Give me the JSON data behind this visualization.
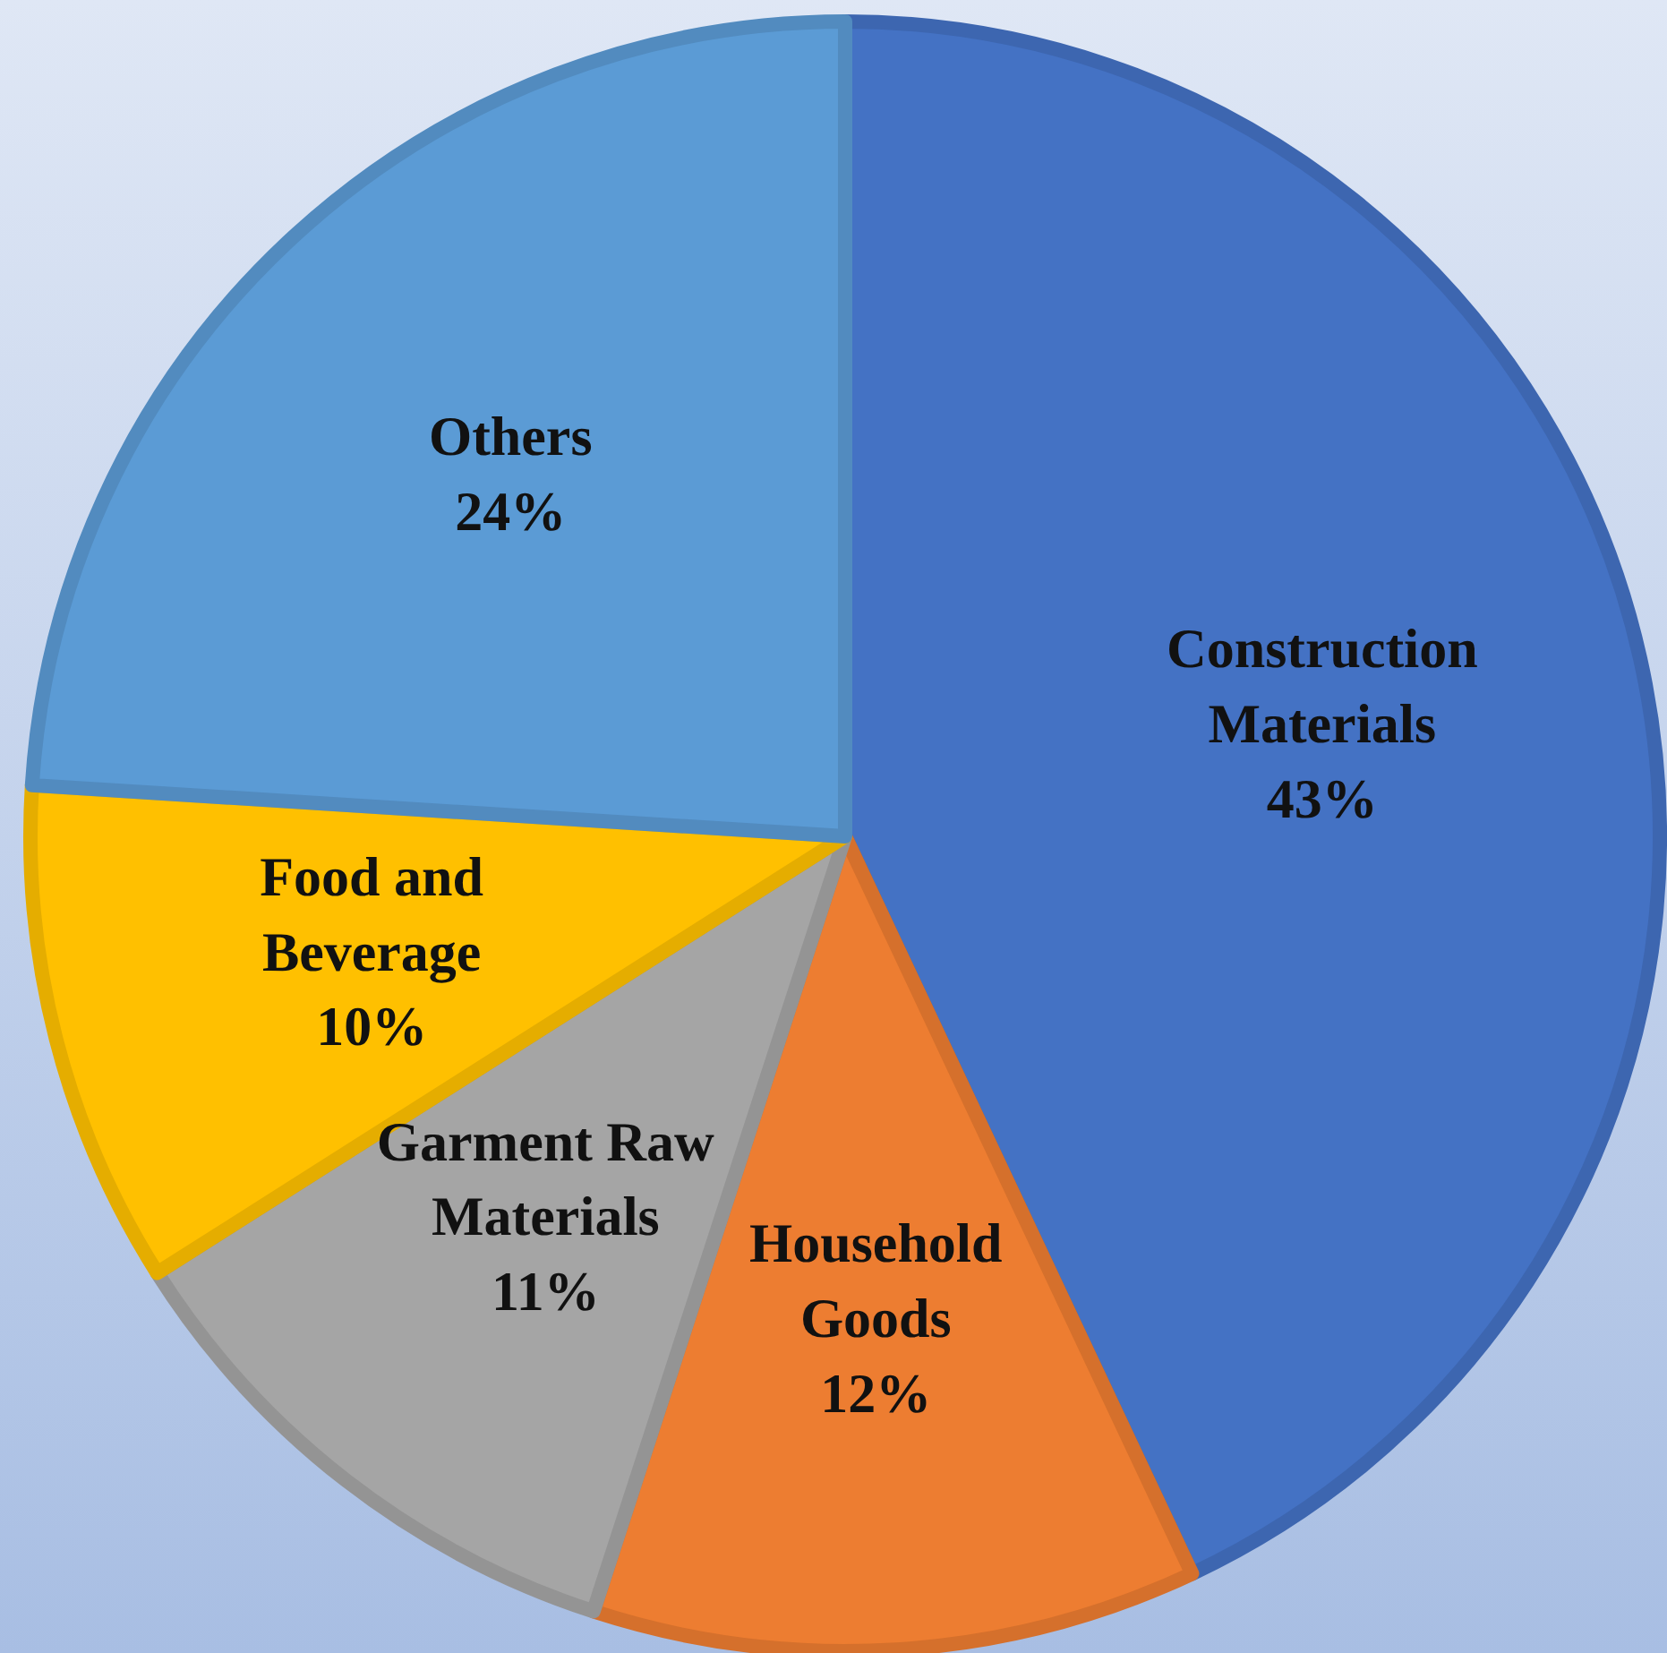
{
  "chart_data": {
    "type": "pie",
    "categories": [
      "Construction Materials",
      "Household Goods",
      "Garment Raw Materials",
      "Food and Beverage",
      "Others"
    ],
    "values": [
      43,
      12,
      11,
      10,
      24
    ],
    "colors": [
      "#4472c4",
      "#ed7d31",
      "#a5a5a5",
      "#ffc000",
      "#5b9bd5"
    ],
    "value_labels": [
      "43%",
      "12%",
      "11%",
      "10%",
      "24%"
    ]
  }
}
